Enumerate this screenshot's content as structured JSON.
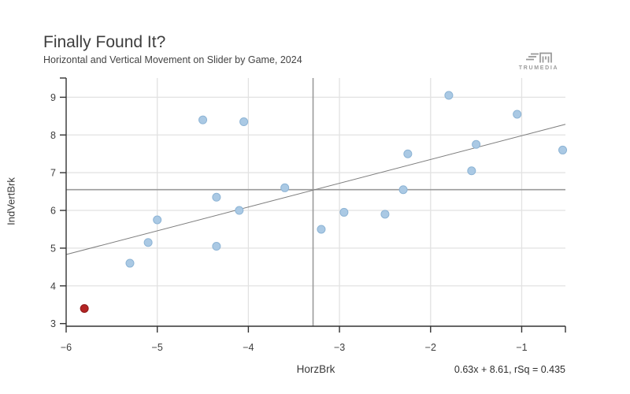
{
  "colors": {
    "background": "#ffffff",
    "grid": "#e2e2e2",
    "axis": "#333333",
    "reference_line": "#9a9a9a",
    "trend_line": "#7d7d7d",
    "text": "#3d3d3d",
    "logo": "#989898",
    "blue_point": "#aac9e4",
    "red_point": "#b32423"
  },
  "logo": {
    "brand": "TRUMEDIA"
  },
  "chart_data": {
    "type": "scatter",
    "title": "Finally Found It?",
    "subtitle": "Horizontal and Vertical Movement on Slider by Game, 2024",
    "xlabel": "HorzBrk",
    "ylabel": "IndVertBrk",
    "xlim": [
      -6,
      -0.52
    ],
    "ylim": [
      2.93,
      9.51
    ],
    "x_tick_values": [
      -6,
      -5,
      -4,
      -3,
      -2,
      -1
    ],
    "x_tick_labels": [
      "−6",
      "−5",
      "−4",
      "−3",
      "−2",
      "−1"
    ],
    "y_tick_values": [
      3,
      4,
      5,
      6,
      7,
      8,
      9
    ],
    "y_tick_labels": [
      "3",
      "4",
      "5",
      "6",
      "7",
      "8",
      "9"
    ],
    "grid": true,
    "legend_position": "none",
    "reference_lines": {
      "vertical_x": -3.29,
      "horizontal_y": 6.55
    },
    "trend_line": {
      "slope": 0.63,
      "intercept": 8.61,
      "r_squared": 0.435,
      "equation_label": "0.63x + 8.61, rSq = 0.435"
    },
    "series": [
      {
        "name": "slider-games",
        "marker_color": "#aac9e4",
        "marker_stroke": "#8db4d5",
        "points": [
          [
            -5.3,
            4.6
          ],
          [
            -5.1,
            5.15
          ],
          [
            -5.0,
            5.75
          ],
          [
            -4.5,
            8.4
          ],
          [
            -4.35,
            6.35
          ],
          [
            -4.35,
            5.05
          ],
          [
            -4.1,
            6.0
          ],
          [
            -4.05,
            8.35
          ],
          [
            -3.6,
            6.6
          ],
          [
            -3.2,
            5.5
          ],
          [
            -2.95,
            5.95
          ],
          [
            -2.5,
            5.9
          ],
          [
            -2.3,
            6.55
          ],
          [
            -2.25,
            7.5
          ],
          [
            -1.8,
            9.05
          ],
          [
            -1.55,
            7.05
          ],
          [
            -1.5,
            7.75
          ],
          [
            -1.05,
            8.55
          ],
          [
            -0.55,
            7.6
          ]
        ]
      },
      {
        "name": "highlighted-game",
        "marker_color": "#b32423",
        "marker_stroke": "#8e1b1b",
        "points": [
          [
            -5.8,
            3.4
          ]
        ]
      }
    ]
  }
}
